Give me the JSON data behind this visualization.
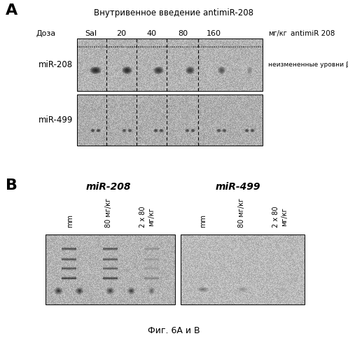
{
  "title_A": "Внутривенное введение antimiR-208",
  "panel_A_label": "A",
  "panel_B_label": "B",
  "dose_label": "Доза",
  "dose_values": [
    "Sal",
    "20",
    "40",
    "80",
    "160"
  ],
  "dose_unit": "мг/кг",
  "antimiR_label": "antimiR 208",
  "mir208_label": "miR-208",
  "mir499_label": "miR-499",
  "right_annotation": "неизмененные уровни βМНС",
  "panel_B_title_left": "miR-208",
  "panel_B_title_right": "miR-499",
  "col_labels_B": [
    "mm",
    "80 мг/кг",
    "2 x 80\nмг/кг"
  ],
  "fig_caption": "Фиг. 6А и В",
  "bg_color": "#ffffff"
}
